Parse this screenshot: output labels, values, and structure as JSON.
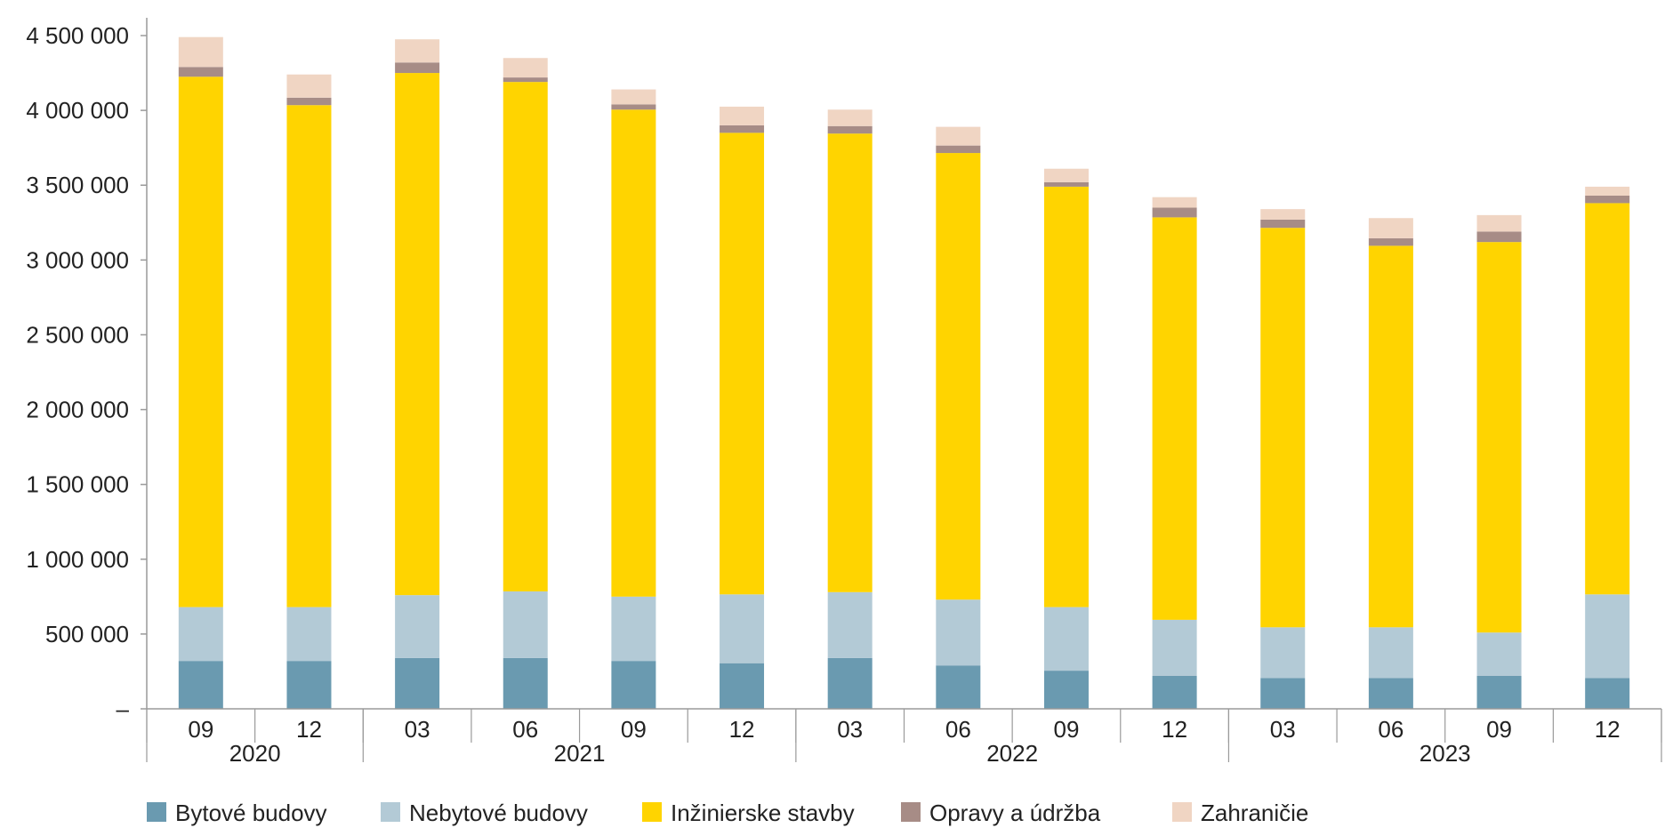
{
  "chart_data": {
    "type": "bar",
    "stacked": true,
    "title": "",
    "xlabel": "",
    "ylabel": "",
    "ylim": [
      0,
      4500000
    ],
    "y_ticks": [
      {
        "value": 0,
        "label": "–"
      },
      {
        "value": 500000,
        "label": "500 000"
      },
      {
        "value": 1000000,
        "label": "1 000 000"
      },
      {
        "value": 1500000,
        "label": "1 500 000"
      },
      {
        "value": 2000000,
        "label": "2 000 000"
      },
      {
        "value": 2500000,
        "label": "2 500 000"
      },
      {
        "value": 3000000,
        "label": "3 000 000"
      },
      {
        "value": 3500000,
        "label": "3 500 000"
      },
      {
        "value": 4000000,
        "label": "4 000 000"
      },
      {
        "value": 4500000,
        "label": "4 500 000"
      }
    ],
    "categories": [
      "09",
      "12",
      "03",
      "06",
      "09",
      "12",
      "03",
      "06",
      "09",
      "12",
      "03",
      "06",
      "09",
      "12"
    ],
    "year_groups": [
      {
        "label": "2020",
        "count": 2
      },
      {
        "label": "2021",
        "count": 4
      },
      {
        "label": "2022",
        "count": 4
      },
      {
        "label": "2023",
        "count": 4
      }
    ],
    "grid": false,
    "legend_position": "bottom",
    "series": [
      {
        "name": "Bytové budovy",
        "color": "#6a9ab0",
        "values": [
          320000,
          320000,
          340000,
          340000,
          320000,
          305000,
          340000,
          290000,
          255000,
          220000,
          205000,
          205000,
          220000,
          205000
        ]
      },
      {
        "name": "Nebytové budovy",
        "color": "#b3cad6",
        "values": [
          360000,
          360000,
          420000,
          445000,
          430000,
          460000,
          440000,
          440000,
          425000,
          375000,
          340000,
          340000,
          290000,
          560000
        ]
      },
      {
        "name": "Inžinierske stavby",
        "color": "#ffd400",
        "values": [
          3545000,
          3355000,
          3490000,
          3405000,
          3255000,
          3085000,
          3065000,
          2985000,
          2810000,
          2690000,
          2670000,
          2550000,
          2610000,
          2615000
        ]
      },
      {
        "name": "Opravy a údržba",
        "color": "#a78c86",
        "values": [
          65000,
          50000,
          70000,
          30000,
          35000,
          50000,
          50000,
          50000,
          30000,
          65000,
          55000,
          50000,
          70000,
          50000
        ]
      },
      {
        "name": "Zahraničie",
        "color": "#f0d5c3",
        "values": [
          200000,
          155000,
          155000,
          130000,
          100000,
          125000,
          110000,
          125000,
          90000,
          70000,
          70000,
          135000,
          110000,
          60000
        ]
      }
    ]
  }
}
